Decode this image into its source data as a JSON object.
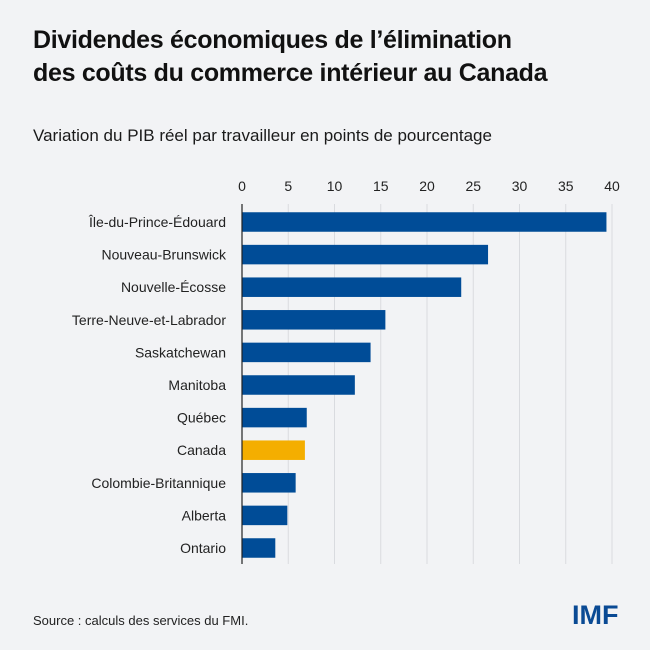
{
  "header": {
    "title_line1": "Dividendes économiques de l’élimination",
    "title_line2": "des coûts du commerce intérieur au Canada",
    "subtitle": "Variation du PIB réel par travailleur en points de pourcentage"
  },
  "footer": {
    "source": "Source : calculs des services du FMI.",
    "logo": "IMF"
  },
  "colors": {
    "primary_bar": "#004c97",
    "highlight_bar": "#f4ae00",
    "grid": "#d9dbdf",
    "axis": "#222222"
  },
  "chart_data": {
    "type": "bar",
    "orientation": "horizontal",
    "title": "Dividendes économiques de l’élimination des coûts du commerce intérieur au Canada",
    "subtitle": "Variation du PIB réel par travailleur en points de pourcentage",
    "xlabel": "",
    "ylabel": "",
    "xlim": [
      0,
      40
    ],
    "xticks": [
      0,
      5,
      10,
      15,
      20,
      25,
      30,
      35,
      40
    ],
    "xtick_position": "top",
    "grid": true,
    "categories": [
      "Île-du-Prince-Édouard",
      "Nouveau-Brunswick",
      "Nouvelle-Écosse",
      "Terre-Neuve-et-Labrador",
      "Saskatchewan",
      "Manitoba",
      "Québec",
      "Canada",
      "Colombie-Britannique",
      "Alberta",
      "Ontario"
    ],
    "values": [
      39.4,
      26.6,
      23.7,
      15.5,
      13.9,
      12.2,
      7.0,
      6.8,
      5.8,
      4.9,
      3.6
    ],
    "highlight": [
      "Canada"
    ]
  }
}
